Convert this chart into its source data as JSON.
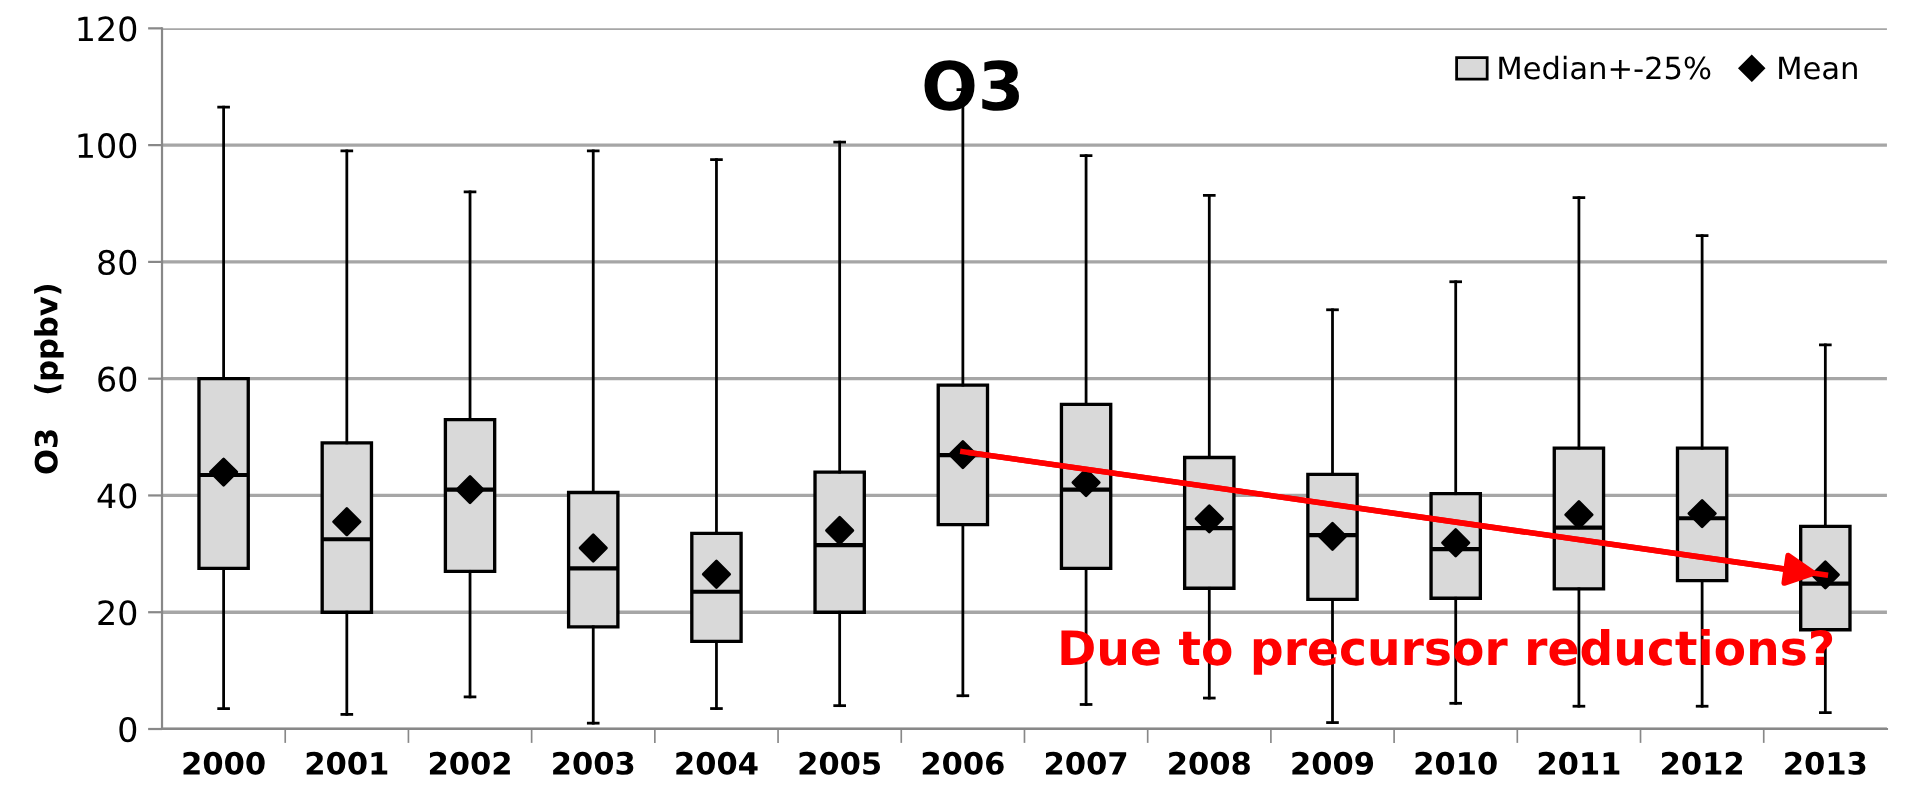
{
  "chart_data": {
    "type": "box",
    "title": "O3",
    "ylabel": "O3   (ppbv)",
    "categories": [
      "2000",
      "2001",
      "2002",
      "2003",
      "2004",
      "2005",
      "2006",
      "2007",
      "2008",
      "2009",
      "2010",
      "2011",
      "2012",
      "2013"
    ],
    "series": [
      {
        "name": "Median+-25%",
        "color": "#d9d9d9",
        "boxes": [
          {
            "low": 3.5,
            "q1": 27.5,
            "median": 43.5,
            "q3": 60,
            "high": 106.5
          },
          {
            "low": 2.5,
            "q1": 20,
            "median": 32.5,
            "q3": 49,
            "high": 99
          },
          {
            "low": 5.5,
            "q1": 27,
            "median": 41,
            "q3": 53,
            "high": 92
          },
          {
            "low": 1,
            "q1": 17.5,
            "median": 27.5,
            "q3": 40.5,
            "high": 99
          },
          {
            "low": 3.5,
            "q1": 15,
            "median": 23.5,
            "q3": 33.5,
            "high": 97.5
          },
          {
            "low": 4,
            "q1": 20,
            "median": 31.5,
            "q3": 44,
            "high": 100.5
          },
          {
            "low": 5.7,
            "q1": 35,
            "median": 46.9,
            "q3": 58.9,
            "high": 109.5
          },
          {
            "low": 4.2,
            "q1": 27.5,
            "median": 41,
            "q3": 55.6,
            "high": 98.2
          },
          {
            "low": 5.3,
            "q1": 24.1,
            "median": 34.4,
            "q3": 46.5,
            "high": 91.4
          },
          {
            "low": 1.1,
            "q1": 22.2,
            "median": 33.2,
            "q3": 43.6,
            "high": 71.8
          },
          {
            "low": 4.4,
            "q1": 22.4,
            "median": 30.8,
            "q3": 40.3,
            "high": 76.6
          },
          {
            "low": 3.9,
            "q1": 24,
            "median": 34.5,
            "q3": 48.1,
            "high": 91
          },
          {
            "low": 3.9,
            "q1": 25.4,
            "median": 36.1,
            "q3": 48.1,
            "high": 84.5
          },
          {
            "low": 2.8,
            "q1": 17,
            "median": 24.9,
            "q3": 34.7,
            "high": 65.8
          }
        ]
      },
      {
        "name": "Mean",
        "type": "scatter",
        "color": "#000000",
        "marker": "diamond",
        "values": [
          44,
          35.5,
          41,
          31,
          26.5,
          34,
          47,
          42.2,
          36,
          33,
          31.9,
          36.7,
          36.9,
          26.4
        ]
      },
      {
        "type": "line",
        "color": "#ff0000",
        "values": [
          null,
          null,
          null,
          null,
          null,
          null,
          47.5,
          null,
          null,
          null,
          null,
          null,
          null,
          26.4
        ]
      }
    ],
    "annotations": [
      "Due to precursor reductions?"
    ],
    "ylim": [
      0,
      120
    ],
    "yticks": [
      0,
      20,
      40,
      60,
      80,
      100,
      120
    ],
    "grid": "y",
    "legend": "top right"
  }
}
